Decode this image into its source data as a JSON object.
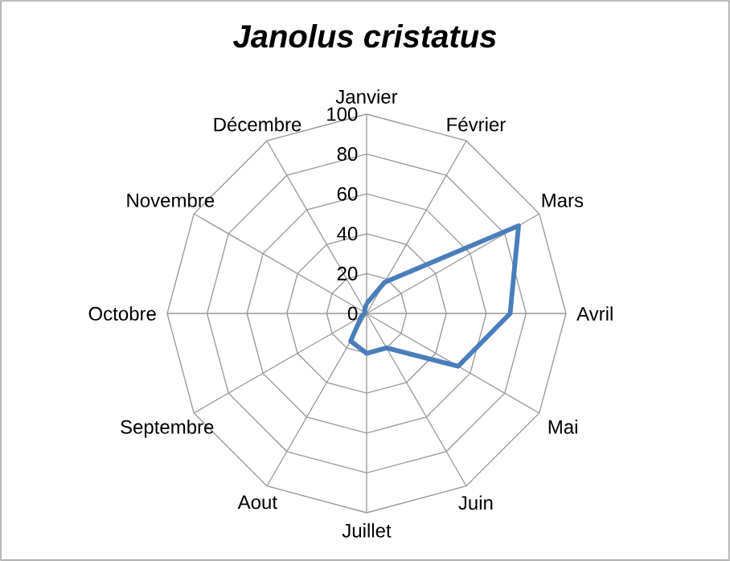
{
  "chart_data": {
    "type": "radar",
    "title": "Janolus cristatus",
    "categories": [
      "Janvier",
      "Février",
      "Mars",
      "Avril",
      "Mai",
      "Juin",
      "Juillet",
      "Aout",
      "Septembre",
      "Octobre",
      "Novembre",
      "Décembre"
    ],
    "series": [
      {
        "color": "#4a7ebb",
        "values": [
          5,
          18,
          88,
          72,
          53,
          20,
          20,
          16,
          3,
          1,
          1,
          2
        ]
      }
    ],
    "ylim": [
      0,
      100
    ],
    "yticks": [
      0,
      20,
      40,
      60,
      80,
      100
    ],
    "grid": true
  }
}
